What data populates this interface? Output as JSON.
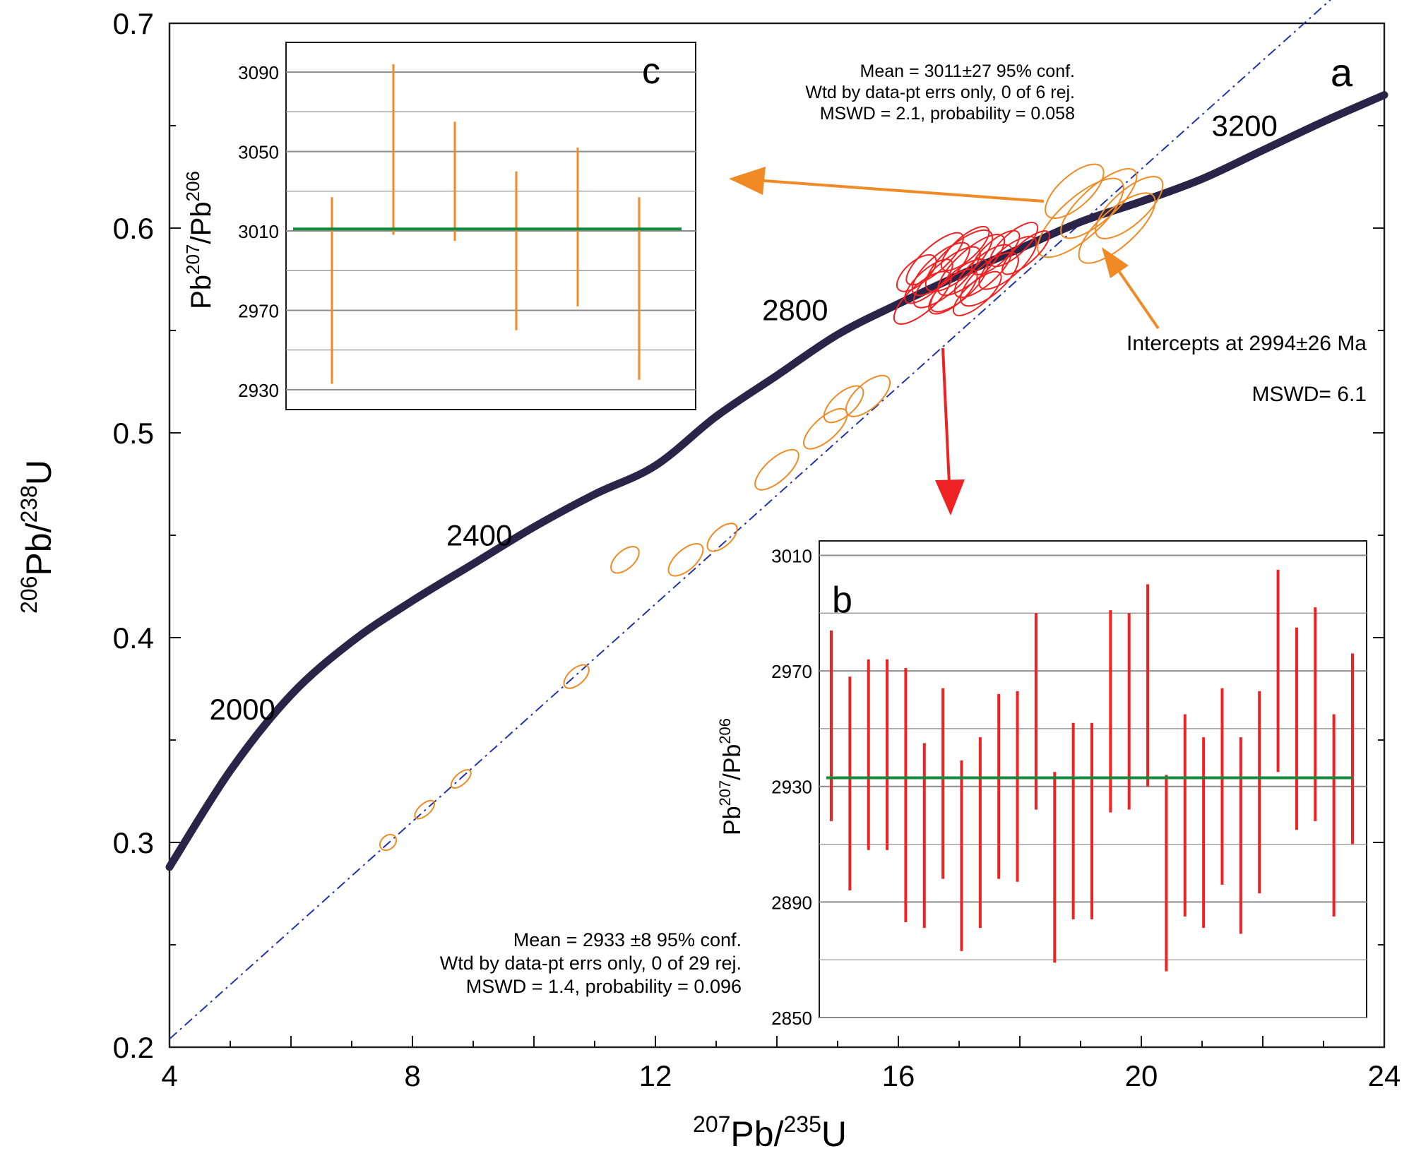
{
  "colors": {
    "concordia": "#2a2548",
    "discordia": "#2233aa",
    "orange": "#f08a24",
    "red": "#ee2222",
    "mean_line": "#138a3c",
    "grid": "#8c8c8c"
  },
  "chart_data": [
    {
      "id": "a",
      "type": "scatter",
      "panel_label": "a",
      "xlabel": {
        "pre": "207",
        "main": "Pb/",
        "sup2": "235",
        "tail": "U"
      },
      "ylabel": {
        "pre": "206",
        "main": "Pb/",
        "sup2": "238",
        "tail": "U"
      },
      "xlim": [
        4,
        24
      ],
      "ylim": [
        0.2,
        0.7
      ],
      "xticks": [
        "4",
        "8",
        "12",
        "16",
        "20",
        "24"
      ],
      "yticks": [
        "0.2",
        "0.3",
        "0.4",
        "0.5",
        "0.6",
        "0.7"
      ],
      "concordia": {
        "points": [
          [
            4.0,
            0.288
          ],
          [
            5.0,
            0.335
          ],
          [
            6.0,
            0.372
          ],
          [
            7.0,
            0.398
          ],
          [
            8.0,
            0.418
          ],
          [
            9.0,
            0.436
          ],
          [
            10.0,
            0.454
          ],
          [
            11.0,
            0.47
          ],
          [
            12.0,
            0.484
          ],
          [
            13.0,
            0.508
          ],
          [
            14.0,
            0.528
          ],
          [
            15.0,
            0.548
          ],
          [
            16.0,
            0.563
          ],
          [
            17.0,
            0.577
          ],
          [
            18.0,
            0.59
          ],
          [
            19.0,
            0.603
          ],
          [
            20.0,
            0.613
          ],
          [
            21.0,
            0.624
          ],
          [
            22.0,
            0.638
          ],
          [
            23.0,
            0.652
          ],
          [
            24.0,
            0.665
          ]
        ],
        "age_labels": [
          {
            "text": "2000",
            "x": 5.2,
            "y": 0.36
          },
          {
            "text": "2400",
            "x": 9.1,
            "y": 0.445
          },
          {
            "text": "2800",
            "x": 14.3,
            "y": 0.555
          },
          {
            "text": "3200",
            "x": 21.7,
            "y": 0.645
          }
        ]
      },
      "discordia": {
        "from": [
          4.0,
          0.204
        ],
        "to": [
          24.0,
          0.735
        ]
      },
      "orange_ellipses": [
        [
          7.6,
          0.3,
          0.15,
          0.006
        ],
        [
          8.2,
          0.316,
          0.2,
          0.005
        ],
        [
          8.8,
          0.331,
          0.2,
          0.005
        ],
        [
          10.7,
          0.381,
          0.25,
          0.007
        ],
        [
          11.5,
          0.438,
          0.28,
          0.008
        ],
        [
          12.5,
          0.438,
          0.35,
          0.009
        ],
        [
          13.1,
          0.449,
          0.3,
          0.008
        ],
        [
          14.0,
          0.482,
          0.45,
          0.01
        ],
        [
          14.8,
          0.502,
          0.45,
          0.01
        ],
        [
          15.1,
          0.514,
          0.4,
          0.01
        ],
        [
          15.5,
          0.518,
          0.45,
          0.011
        ],
        [
          19.0,
          0.605,
          0.9,
          0.018
        ],
        [
          19.3,
          0.612,
          0.8,
          0.015
        ],
        [
          19.6,
          0.6,
          0.8,
          0.016
        ],
        [
          18.9,
          0.618,
          0.6,
          0.014
        ],
        [
          19.8,
          0.61,
          0.7,
          0.015
        ]
      ],
      "red_ellipses": [
        [
          16.4,
          0.566,
          0.6,
          0.012
        ],
        [
          16.8,
          0.576,
          0.7,
          0.013
        ],
        [
          17.0,
          0.572,
          0.6,
          0.012
        ],
        [
          17.2,
          0.582,
          0.7,
          0.013
        ],
        [
          17.4,
          0.579,
          0.6,
          0.012
        ],
        [
          16.6,
          0.585,
          0.6,
          0.011
        ],
        [
          17.6,
          0.588,
          0.5,
          0.01
        ],
        [
          16.9,
          0.569,
          0.5,
          0.011
        ],
        [
          17.8,
          0.583,
          0.6,
          0.012
        ],
        [
          17.1,
          0.59,
          0.5,
          0.01
        ],
        [
          16.5,
          0.574,
          0.5,
          0.01
        ],
        [
          17.3,
          0.568,
          0.5,
          0.01
        ],
        [
          17.9,
          0.592,
          0.5,
          0.01
        ],
        [
          17.5,
          0.575,
          0.6,
          0.013
        ],
        [
          16.7,
          0.58,
          0.6,
          0.012
        ],
        [
          18.1,
          0.588,
          0.5,
          0.009
        ],
        [
          16.3,
          0.578,
          0.4,
          0.01
        ],
        [
          17.0,
          0.584,
          0.7,
          0.014
        ]
      ],
      "annotations": {
        "intercept": "Intercepts at 2994±26 Ma",
        "intercept_mswd": "MSWD= 6.1",
        "b_mean_lines": [
          "Mean = 2933  ±8  95% conf.",
          "Wtd by data-pt errs only, 0 of 29 rej.",
          "MSWD = 1.4, probability = 0.096"
        ],
        "c_mean_lines": [
          "Mean = 3011±27 95% conf.",
          "Wtd by data-pt errs only, 0 of 6 rej.",
          "MSWD = 2.1, probability = 0.058"
        ]
      }
    },
    {
      "id": "b",
      "type": "bar",
      "panel_label": "b",
      "ylabel": {
        "main": "Pb",
        "sup1": "207",
        "mid": "/Pb",
        "sup2": "206"
      },
      "ylim": [
        2850,
        3015
      ],
      "yticks": [
        "2850",
        "2890",
        "2930",
        "2970",
        "3010"
      ],
      "mean": 2933,
      "values": [
        2951,
        2931,
        2941,
        2941,
        2927,
        2913,
        2931,
        2906,
        2914,
        2930,
        2930,
        2956,
        2902,
        2918,
        2918,
        2956,
        2956,
        2965,
        2900,
        2920,
        2914,
        2930,
        2913,
        2928,
        2970,
        2950,
        2955,
        2920,
        2943
      ],
      "errors": [
        33,
        37,
        33,
        33,
        44,
        32,
        33,
        33,
        33,
        32,
        33,
        34,
        33,
        34,
        34,
        35,
        34,
        35,
        34,
        35,
        33,
        34,
        34,
        35,
        35,
        35,
        37,
        35,
        33
      ]
    },
    {
      "id": "c",
      "type": "bar",
      "panel_label": "c",
      "ylabel": {
        "main": "Pb",
        "sup1": "207",
        "mid": "/Pb",
        "sup2": "206"
      },
      "ylim": [
        2920,
        3105
      ],
      "yticks": [
        "2930",
        "2970",
        "3010",
        "3050",
        "3090"
      ],
      "mean": 3011,
      "values": [
        2980,
        3051,
        3035,
        3000,
        3012,
        2981
      ],
      "errors": [
        47,
        43,
        30,
        40,
        40,
        46
      ]
    }
  ]
}
